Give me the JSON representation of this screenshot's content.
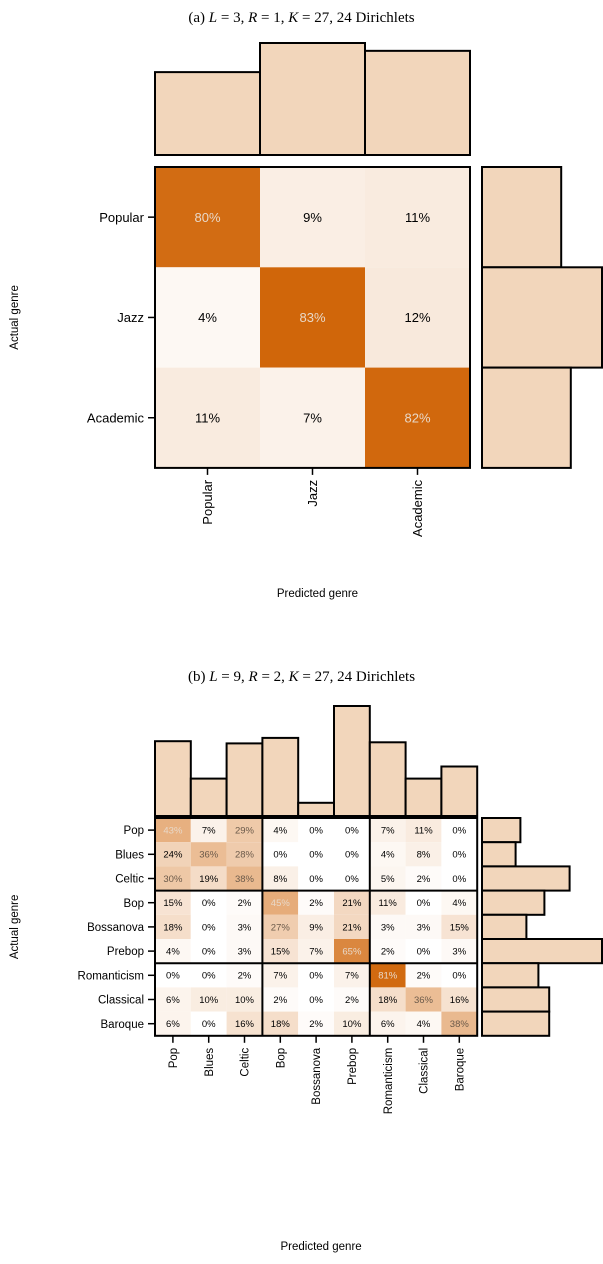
{
  "chart_data": [
    {
      "type": "heatmap",
      "title": "(a) L = 3, R = 1, K = 27, 24 Dirichlets",
      "title_parts": {
        "label": "(a)",
        "L": "3",
        "R": "1",
        "K": "27",
        "suffix": "24 Dirichlets"
      },
      "xlabel": "Predicted genre",
      "ylabel": "Actual genre",
      "rows": [
        "Popular",
        "Jazz",
        "Academic"
      ],
      "cols": [
        "Popular",
        "Jazz",
        "Academic"
      ],
      "values": [
        [
          80,
          9,
          11
        ],
        [
          4,
          83,
          12
        ],
        [
          11,
          7,
          82
        ]
      ],
      "unit": "%",
      "top_marginal": [
        0.74,
        1.0,
        0.93
      ],
      "right_marginal": [
        0.66,
        1.0,
        0.74
      ],
      "groups": [
        3
      ],
      "colors": {
        "max": "#d0660a",
        "min": "#ffffff",
        "bar": "#f2d6bb",
        "text_dark": "#000000",
        "text_light": "#e8d8c8"
      }
    },
    {
      "type": "heatmap",
      "title": "(b) L = 9, R = 2, K = 27, 24 Dirichlets",
      "title_parts": {
        "label": "(b)",
        "L": "9",
        "R": "2",
        "K": "27",
        "suffix": "24 Dirichlets"
      },
      "xlabel": "Predicted genre",
      "ylabel": "Actual genre",
      "rows": [
        "Pop",
        "Blues",
        "Celtic",
        "Bop",
        "Bossanova",
        "Prebop",
        "Romanticism",
        "Classical",
        "Baroque"
      ],
      "cols": [
        "Pop",
        "Blues",
        "Celtic",
        "Bop",
        "Bossanova",
        "Prebop",
        "Romanticism",
        "Classical",
        "Baroque"
      ],
      "values": [
        [
          43,
          7,
          29,
          4,
          0,
          0,
          7,
          11,
          0
        ],
        [
          24,
          36,
          28,
          0,
          0,
          0,
          4,
          8,
          0
        ],
        [
          30,
          19,
          38,
          8,
          0,
          0,
          5,
          2,
          0
        ],
        [
          15,
          0,
          2,
          45,
          2,
          21,
          11,
          0,
          4
        ],
        [
          18,
          0,
          3,
          27,
          9,
          21,
          3,
          3,
          15
        ],
        [
          4,
          0,
          3,
          15,
          7,
          65,
          2,
          0,
          3
        ],
        [
          0,
          0,
          2,
          7,
          0,
          7,
          81,
          2,
          0
        ],
        [
          6,
          10,
          10,
          2,
          0,
          2,
          18,
          36,
          16
        ],
        [
          6,
          0,
          16,
          18,
          2,
          10,
          6,
          4,
          38
        ]
      ],
      "unit": "%",
      "top_marginal": [
        0.68,
        0.34,
        0.66,
        0.71,
        0.12,
        1.0,
        0.67,
        0.34,
        0.45
      ],
      "right_marginal": [
        0.32,
        0.28,
        0.73,
        0.52,
        0.37,
        1.0,
        0.47,
        0.56,
        0.56
      ],
      "groups": [
        3,
        3,
        3
      ],
      "colors": {
        "max": "#d0660a",
        "min": "#ffffff",
        "bar": "#f2d6bb",
        "text_dark": "#000000",
        "text_light": "#e8d8c8"
      }
    }
  ]
}
